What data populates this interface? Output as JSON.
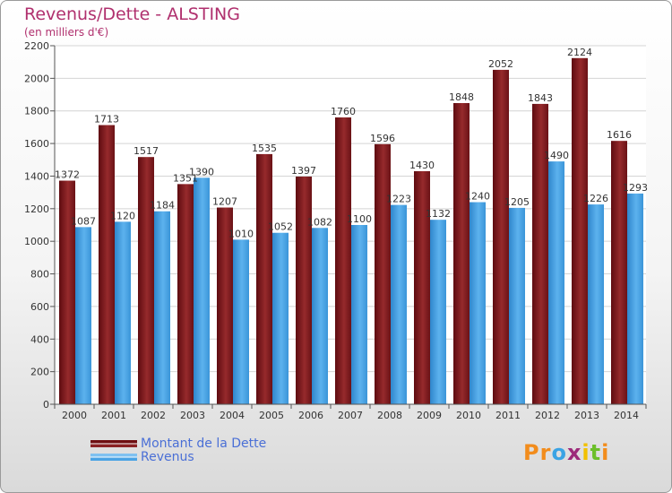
{
  "header": {
    "title": "Revenus/Dette - ALSTING",
    "subtitle": "(en milliers d'€)"
  },
  "legend": {
    "items": [
      {
        "label": "Montant de la Dette",
        "color": "#6e0f12"
      },
      {
        "label": "Revenus",
        "color": "#4aa3e4"
      }
    ]
  },
  "branding": {
    "logo_letters": [
      "P",
      "r",
      "o",
      "x",
      "i",
      "t",
      "i"
    ],
    "logo_colors": [
      "#f28c1c",
      "#f28c1c",
      "#3aa3e4",
      "#9c2a7a",
      "#f2c000",
      "#6cbf2a",
      "#f28c1c"
    ]
  },
  "chart_data": {
    "type": "bar",
    "categories": [
      "2000",
      "2001",
      "2002",
      "2003",
      "2004",
      "2005",
      "2006",
      "2007",
      "2008",
      "2009",
      "2010",
      "2011",
      "2012",
      "2013",
      "2014"
    ],
    "series": [
      {
        "name": "Montant de la Dette",
        "color": "#8a2224",
        "values": [
          1372,
          1713,
          1517,
          1351,
          1207,
          1535,
          1397,
          1760,
          1596,
          1430,
          1848,
          2052,
          1843,
          2124,
          1616
        ]
      },
      {
        "name": "Revenus",
        "color": "#4aa3e4",
        "values": [
          1087,
          1120,
          1184,
          1390,
          1010,
          1052,
          1082,
          1100,
          1223,
          1132,
          1240,
          1205,
          1490,
          1226,
          1293
        ]
      }
    ],
    "yticks": [
      0,
      200,
      400,
      600,
      800,
      1000,
      1200,
      1400,
      1600,
      1800,
      2000,
      2200
    ],
    "ylim": [
      0,
      2200
    ],
    "grid": true
  }
}
